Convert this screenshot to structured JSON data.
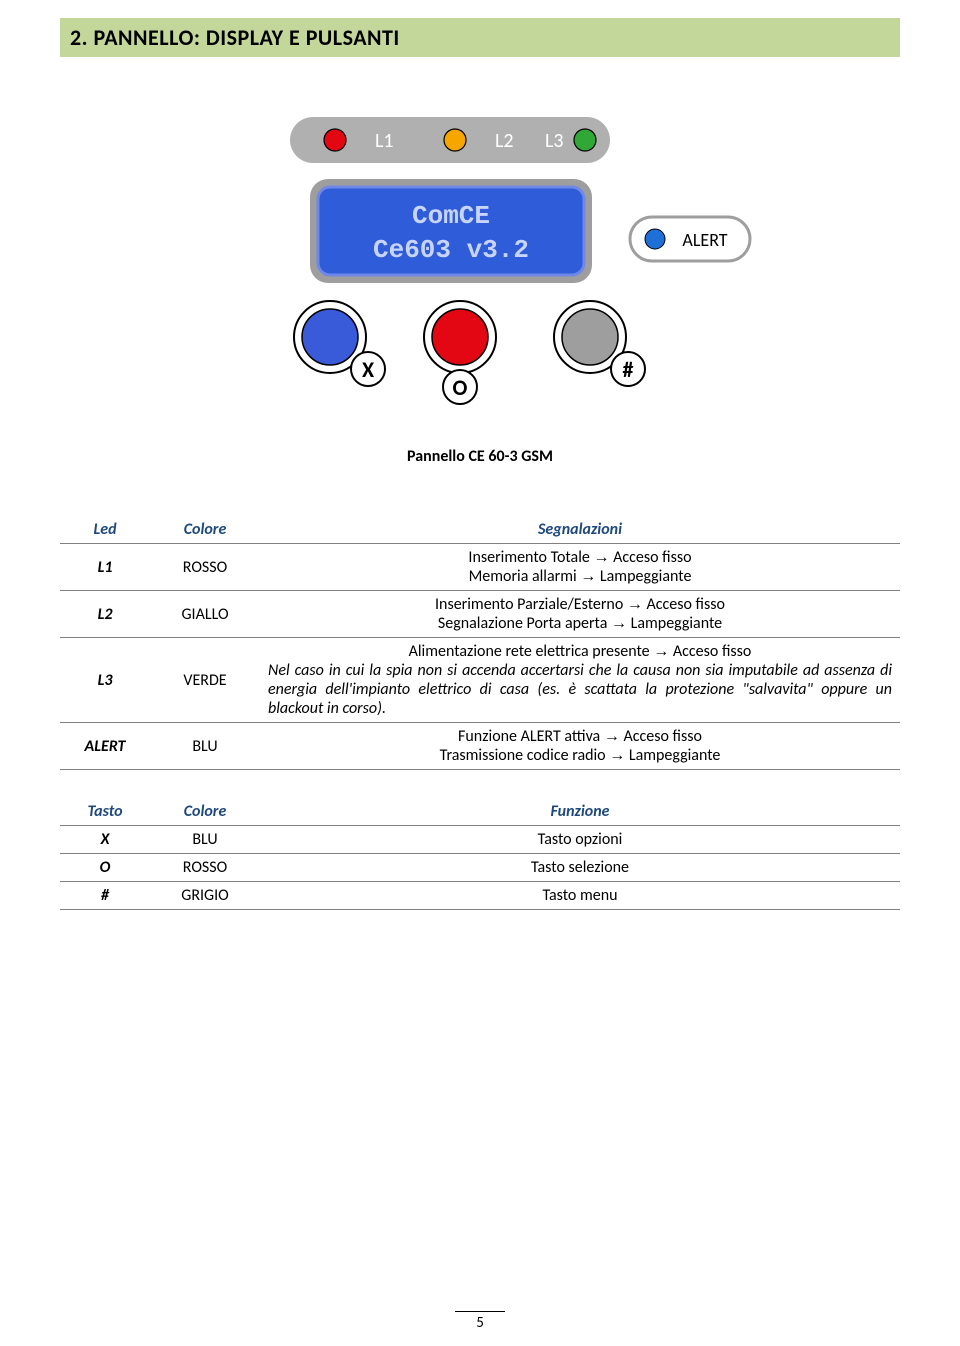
{
  "heading": "2.  PANNELLO: DISPLAY E PULSANTI",
  "panel": {
    "leds": {
      "l1": {
        "label": "L1",
        "color": "#e30613"
      },
      "l2": {
        "label": "L2",
        "color": "#f7a600"
      },
      "l3": {
        "label": "L3",
        "color": "#2fa836"
      }
    },
    "display": {
      "line1": "ComCE",
      "line2": "Ce603 v3.2",
      "bg": "#2f5cd8",
      "text_color": "#c7d4ff",
      "frame": "#9e9e9e"
    },
    "alert": {
      "label": "ALERT",
      "color": "#1f6fd8"
    },
    "buttons": {
      "x": {
        "label": "X",
        "fill": "#3a5bd9"
      },
      "o": {
        "label": "O",
        "fill": "#e30613"
      },
      "hash": {
        "label": "#",
        "fill": "#9e9e9e"
      }
    },
    "caption": "Pannello CE 60-3 GSM"
  },
  "table1": {
    "headers": [
      "Led",
      "Colore",
      "Segnalazioni"
    ],
    "rows": [
      {
        "c1": "L1",
        "c2": "ROSSO",
        "lines": [
          "Inserimento Totale → Acceso fisso",
          "Memoria allarmi → Lampeggiante"
        ]
      },
      {
        "c1": "L2",
        "c2": "GIALLO",
        "lines": [
          "Inserimento Parziale/Esterno → Acceso fisso",
          "Segnalazione Porta aperta → Lampeggiante"
        ]
      },
      {
        "c1": "L3",
        "c2": "VERDE",
        "lines": [
          "Alimentazione rete elettrica presente → Acceso fisso"
        ],
        "italic": "Nel caso in cui la spia non si accenda accertarsi che la causa non sia imputabile ad assenza di energia dell'impianto elettrico di casa (es. è scattata la protezione \"salvavita\" oppure un blackout in corso)."
      },
      {
        "c1": "ALERT",
        "c2": "BLU",
        "lines": [
          "Funzione ALERT attiva → Acceso fisso",
          "Trasmissione codice radio → Lampeggiante"
        ]
      }
    ]
  },
  "table2": {
    "headers": [
      "Tasto",
      "Colore",
      "Funzione"
    ],
    "rows": [
      {
        "c1": "X",
        "c2": "BLU",
        "c3": "Tasto opzioni"
      },
      {
        "c1": "O",
        "c2": "ROSSO",
        "c3": "Tasto selezione"
      },
      {
        "c1": "#",
        "c2": "GRIGIO",
        "c3": "Tasto menu"
      }
    ]
  },
  "page_number": "5",
  "colors": {
    "heading_bg": "#c3d79b",
    "header_text": "#1f497d",
    "rule": "#7f7f7f",
    "led_bar": "#b0b0b0"
  }
}
